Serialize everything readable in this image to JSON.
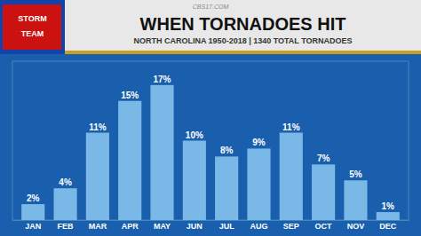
{
  "chart_data": {
    "type": "bar",
    "title": "WHEN TORNADOES HIT",
    "subtitle": "NORTH CAROLINA 1950-2018 | 1340 TOTAL TORNADOES",
    "annotations": [
      "CBS17.COM",
      "STORM",
      "TEAM"
    ],
    "categories": [
      "JAN",
      "FEB",
      "MAR",
      "APR",
      "MAY",
      "JUN",
      "JUL",
      "AUG",
      "SEP",
      "OCT",
      "NOV",
      "DEC"
    ],
    "values": [
      2,
      4,
      11,
      15,
      17,
      10,
      8,
      9,
      11,
      7,
      5,
      1
    ],
    "value_labels": [
      "2%",
      "4%",
      "11%",
      "15%",
      "17%",
      "10%",
      "8%",
      "9%",
      "11%",
      "7%",
      "5%",
      "1%"
    ],
    "color": "#7ab8e8",
    "ylim": [
      0,
      20
    ],
    "data_labels": true,
    "tick_labels": "x",
    "grid": false
  }
}
